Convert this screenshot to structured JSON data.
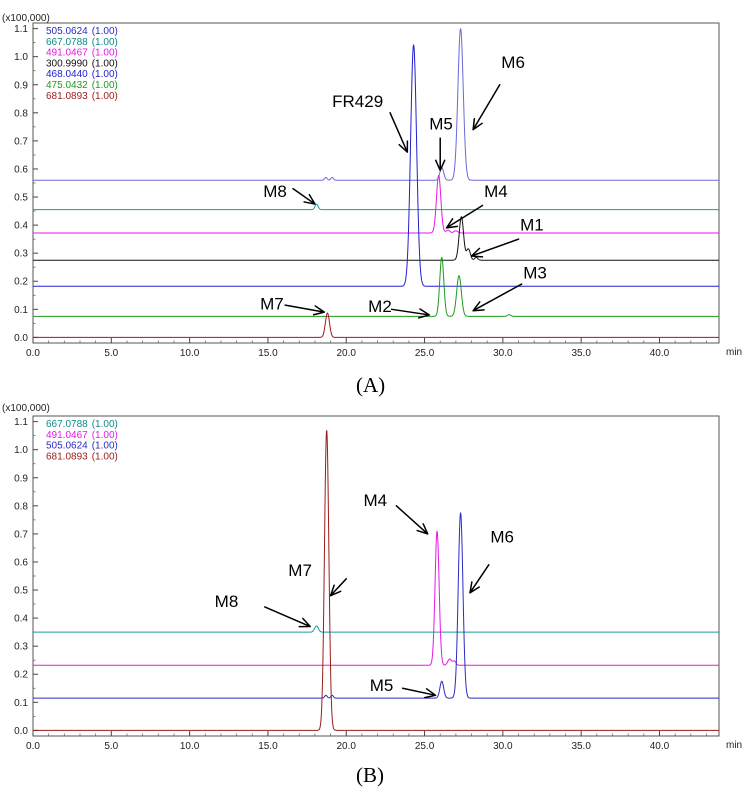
{
  "chart_data": [
    {
      "type": "line",
      "panel": "A",
      "caption": "(A)",
      "multiplier_label": "(x100,000)",
      "xlabel": "min",
      "xlim": [
        0.0,
        43.8
      ],
      "ylim": [
        -0.02,
        1.12
      ],
      "x_ticks": [
        "0.0",
        "5.0",
        "10.0",
        "15.0",
        "20.0",
        "25.0",
        "30.0",
        "35.0",
        "40.0"
      ],
      "y_ticks": [
        "0.0",
        "0.1",
        "0.2",
        "0.3",
        "0.4",
        "0.5",
        "0.6",
        "0.7",
        "0.8",
        "0.9",
        "1.0",
        "1.1"
      ],
      "grid": false,
      "legend_position": "top-left",
      "legend": [
        {
          "mz": "505.0624",
          "scale": "(1.00)",
          "color": "#2b2bc4"
        },
        {
          "mz": "667.0788",
          "scale": "(1.00)",
          "color": "#0f8a8a"
        },
        {
          "mz": "491.0467",
          "scale": "(1.00)",
          "color": "#e619e6"
        },
        {
          "mz": "300.9990",
          "scale": "(1.00)",
          "color": "#111111"
        },
        {
          "mz": "468.0440",
          "scale": "(1.00)",
          "color": "#2020d0"
        },
        {
          "mz": "475.0432",
          "scale": "(1.00)",
          "color": "#1f9a1f"
        },
        {
          "mz": "681.0893",
          "scale": "(1.00)",
          "color": "#9b1c1c"
        }
      ],
      "series": [
        {
          "name": "505.0624",
          "color": "#6a6ad8",
          "baseline": 0.56,
          "peaks": [
            {
              "x": 18.7,
              "h": 0.01,
              "w": 0.08
            },
            {
              "x": 19.1,
              "h": 0.01,
              "w": 0.08
            },
            {
              "x": 26.1,
              "h": 0.045,
              "w": 0.12
            },
            {
              "x": 27.3,
              "h": 0.54,
              "w": 0.17
            }
          ]
        },
        {
          "name": "667.0788",
          "color": "#1a9a9a",
          "baseline": 0.455,
          "peaks": [
            {
              "x": 18.1,
              "h": 0.02,
              "w": 0.1
            }
          ]
        },
        {
          "name": "491.0467",
          "color": "#e619e6",
          "baseline": 0.372,
          "peaks": [
            {
              "x": 25.9,
              "h": 0.205,
              "w": 0.14
            },
            {
              "x": 26.5,
              "h": 0.01,
              "w": 0.12
            },
            {
              "x": 27.0,
              "h": 0.008,
              "w": 0.12
            }
          ]
        },
        {
          "name": "300.9990",
          "color": "#111111",
          "baseline": 0.275,
          "peaks": [
            {
              "x": 27.35,
              "h": 0.155,
              "w": 0.14
            },
            {
              "x": 27.8,
              "h": 0.04,
              "w": 0.12
            },
            {
              "x": 28.3,
              "h": 0.01,
              "w": 0.1
            }
          ]
        },
        {
          "name": "468.0440",
          "color": "#2020d0",
          "baseline": 0.182,
          "peaks": [
            {
              "x": 24.3,
              "h": 0.86,
              "w": 0.19
            }
          ]
        },
        {
          "name": "475.0432",
          "color": "#1f9a1f",
          "baseline": 0.075,
          "peaks": [
            {
              "x": 26.1,
              "h": 0.21,
              "w": 0.13
            },
            {
              "x": 27.2,
              "h": 0.145,
              "w": 0.15
            },
            {
              "x": 30.4,
              "h": 0.006,
              "w": 0.1
            }
          ]
        },
        {
          "name": "681.0893",
          "color": "#9b1c1c",
          "baseline": 0.0,
          "peaks": [
            {
              "x": 18.8,
              "h": 0.087,
              "w": 0.13
            }
          ]
        }
      ],
      "annotations": [
        {
          "text": "FR429",
          "text_at": [
            19.1,
            0.82
          ],
          "arrow_from": [
            22.8,
            0.8
          ],
          "arrow_to": [
            23.9,
            0.66
          ]
        },
        {
          "text": "M5",
          "text_at": [
            25.3,
            0.74
          ],
          "arrow_from": [
            26.0,
            0.71
          ],
          "arrow_to": [
            26.0,
            0.595
          ]
        },
        {
          "text": "M6",
          "text_at": [
            29.9,
            0.96
          ],
          "arrow_from": [
            29.8,
            0.9
          ],
          "arrow_to": [
            28.1,
            0.74
          ]
        },
        {
          "text": "M8",
          "text_at": [
            14.7,
            0.5
          ],
          "arrow_from": [
            16.6,
            0.53
          ],
          "arrow_to": [
            18.0,
            0.475
          ]
        },
        {
          "text": "M4",
          "text_at": [
            28.8,
            0.5
          ],
          "arrow_from": [
            28.7,
            0.47
          ],
          "arrow_to": [
            26.4,
            0.39
          ]
        },
        {
          "text": "M1",
          "text_at": [
            31.1,
            0.38
          ],
          "arrow_from": [
            31.0,
            0.35
          ],
          "arrow_to": [
            28.0,
            0.29
          ]
        },
        {
          "text": "M3",
          "text_at": [
            31.3,
            0.21
          ],
          "arrow_from": [
            31.2,
            0.19
          ],
          "arrow_to": [
            28.1,
            0.095
          ]
        },
        {
          "text": "M7",
          "text_at": [
            14.5,
            0.1
          ],
          "arrow_from": [
            16.1,
            0.115
          ],
          "arrow_to": [
            18.6,
            0.09
          ]
        },
        {
          "text": "M2",
          "text_at": [
            21.4,
            0.09
          ],
          "arrow_from": [
            22.9,
            0.1
          ],
          "arrow_to": [
            25.3,
            0.08
          ]
        }
      ]
    },
    {
      "type": "line",
      "panel": "B",
      "caption": "(B)",
      "multiplier_label": "(x100,000)",
      "xlabel": "min",
      "xlim": [
        0.0,
        43.8
      ],
      "ylim": [
        -0.02,
        1.12
      ],
      "x_ticks": [
        "0.0",
        "5.0",
        "10.0",
        "15.0",
        "20.0",
        "25.0",
        "30.0",
        "35.0",
        "40.0"
      ],
      "y_ticks": [
        "0.0",
        "0.1",
        "0.2",
        "0.3",
        "0.4",
        "0.5",
        "0.6",
        "0.7",
        "0.8",
        "0.9",
        "1.0",
        "1.1"
      ],
      "grid": false,
      "legend_position": "top-left",
      "legend": [
        {
          "mz": "667.0788",
          "scale": "(1.00)",
          "color": "#0f8a8a"
        },
        {
          "mz": "491.0467",
          "scale": "(1.00)",
          "color": "#e619e6"
        },
        {
          "mz": "505.0624",
          "scale": "(1.00)",
          "color": "#2b2bc4"
        },
        {
          "mz": "681.0893",
          "scale": "(1.00)",
          "color": "#9b1c1c"
        }
      ],
      "series": [
        {
          "name": "667.0788",
          "color": "#1a9a9a",
          "baseline": 0.35,
          "peaks": [
            {
              "x": 18.1,
              "h": 0.022,
              "w": 0.12
            }
          ]
        },
        {
          "name": "491.0467",
          "color": "#e619e6",
          "baseline": 0.232,
          "peaks": [
            {
              "x": 25.8,
              "h": 0.478,
              "w": 0.13
            },
            {
              "x": 26.6,
              "h": 0.022,
              "w": 0.12
            },
            {
              "x": 26.9,
              "h": 0.015,
              "w": 0.1
            }
          ]
        },
        {
          "name": "505.0624",
          "color": "#2b2bc4",
          "baseline": 0.115,
          "peaks": [
            {
              "x": 18.7,
              "h": 0.01,
              "w": 0.08
            },
            {
              "x": 19.1,
              "h": 0.01,
              "w": 0.08
            },
            {
              "x": 26.1,
              "h": 0.06,
              "w": 0.12
            },
            {
              "x": 27.3,
              "h": 0.66,
              "w": 0.15
            }
          ]
        },
        {
          "name": "681.0893",
          "color": "#9b1c1c",
          "baseline": 0.0,
          "peaks": [
            {
              "x": 18.75,
              "h": 1.07,
              "w": 0.14
            }
          ]
        }
      ],
      "annotations": [
        {
          "text": "M4",
          "text_at": [
            21.1,
            0.8
          ],
          "arrow_from": [
            23.2,
            0.8
          ],
          "arrow_to": [
            25.2,
            0.7
          ]
        },
        {
          "text": "M6",
          "text_at": [
            29.2,
            0.67
          ],
          "arrow_from": [
            29.1,
            0.59
          ],
          "arrow_to": [
            27.9,
            0.49
          ]
        },
        {
          "text": "M7",
          "text_at": [
            16.3,
            0.55
          ],
          "arrow_from": [
            20.0,
            0.54
          ],
          "arrow_to": [
            19.0,
            0.48
          ]
        },
        {
          "text": "M8",
          "text_at": [
            11.6,
            0.44
          ],
          "arrow_from": [
            14.8,
            0.44
          ],
          "arrow_to": [
            17.7,
            0.37
          ]
        },
        {
          "text": "M5",
          "text_at": [
            21.5,
            0.14
          ],
          "arrow_from": [
            23.6,
            0.15
          ],
          "arrow_to": [
            25.7,
            0.125
          ]
        }
      ]
    }
  ]
}
